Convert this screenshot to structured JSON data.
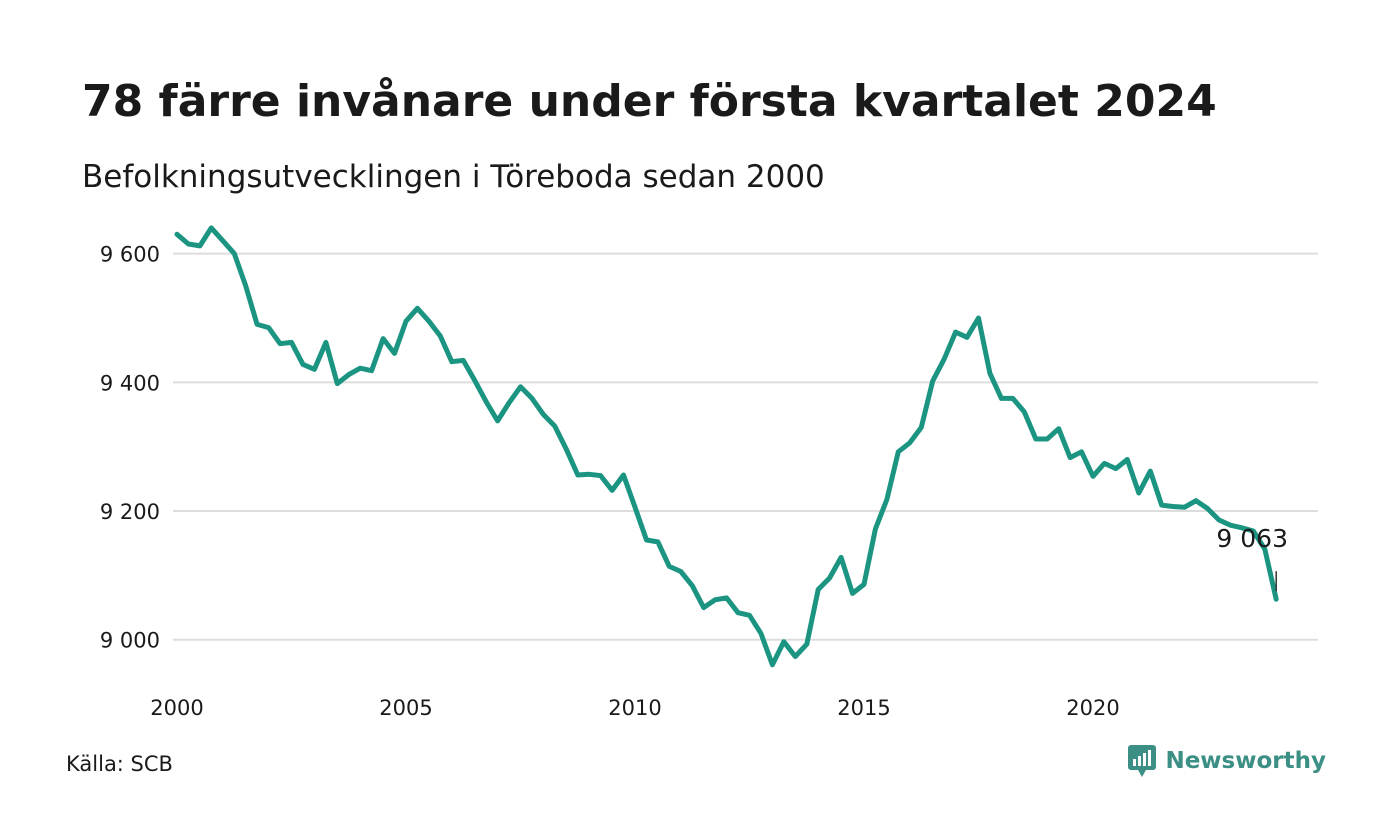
{
  "title": "78 färre invånare under första kvartalet 2024",
  "subtitle": "Befolkningsutvecklingen i Töreboda sedan 2000",
  "source": "Källa: SCB",
  "brand": {
    "name": "Newsworthy",
    "icon": "newsworthy-logo-icon",
    "color": "#3b8f84"
  },
  "chart_data": {
    "type": "line",
    "title": "78 färre invånare under första kvartalet 2024",
    "subtitle": "Befolkningsutvecklingen i Töreboda sedan 2000",
    "xlabel": "",
    "ylabel": "",
    "x_ticks": [
      "2000",
      "2005",
      "2010",
      "2015",
      "2020"
    ],
    "y_ticks": [
      {
        "value": 9000,
        "label": "9 000"
      },
      {
        "value": 9200,
        "label": "9 200"
      },
      {
        "value": 9400,
        "label": "9 400"
      },
      {
        "value": 9600,
        "label": "9 600"
      }
    ],
    "ylim": [
      8925,
      9660
    ],
    "xlim": [
      2000.0,
      2025.0
    ],
    "grid": "horizontal",
    "legend": "none",
    "line_color": "#1b9582",
    "grid_color": "#dddddd",
    "annotation": {
      "label": "9 063",
      "value": 9063,
      "x": "2024 Q1"
    },
    "series": [
      {
        "x": [
          "2000 Q1",
          "2000 Q2",
          "2000 Q3",
          "2000 Q4",
          "2001 Q1",
          "2001 Q2",
          "2001 Q3",
          "2001 Q4",
          "2002 Q1",
          "2002 Q2",
          "2002 Q3",
          "2002 Q4",
          "2003 Q1",
          "2003 Q2",
          "2003 Q3",
          "2003 Q4",
          "2004 Q1",
          "2004 Q2",
          "2004 Q3",
          "2004 Q4",
          "2005 Q1",
          "2005 Q2",
          "2005 Q3",
          "2005 Q4",
          "2006 Q1",
          "2006 Q2",
          "2006 Q3",
          "2006 Q4",
          "2007 Q1",
          "2007 Q2",
          "2007 Q3",
          "2007 Q4",
          "2008 Q1",
          "2008 Q2",
          "2008 Q3",
          "2008 Q4",
          "2009 Q1",
          "2009 Q2",
          "2009 Q3",
          "2009 Q4",
          "2010 Q1",
          "2010 Q2",
          "2010 Q3",
          "2010 Q4",
          "2011 Q1",
          "2011 Q2",
          "2011 Q3",
          "2011 Q4",
          "2012 Q1",
          "2012 Q2",
          "2012 Q3",
          "2012 Q4",
          "2013 Q1",
          "2013 Q2",
          "2013 Q3",
          "2013 Q4",
          "2014 Q1",
          "2014 Q2",
          "2014 Q3",
          "2014 Q4",
          "2015 Q1",
          "2015 Q2",
          "2015 Q3",
          "2015 Q4",
          "2016 Q1",
          "2016 Q2",
          "2016 Q3",
          "2016 Q4",
          "2017 Q1",
          "2017 Q2",
          "2017 Q3",
          "2017 Q4",
          "2018 Q1",
          "2018 Q2",
          "2018 Q3",
          "2018 Q4",
          "2019 Q1",
          "2019 Q2",
          "2019 Q3",
          "2019 Q4",
          "2020 Q1",
          "2020 Q2",
          "2020 Q3",
          "2020 Q4",
          "2021 Q1",
          "2021 Q2",
          "2021 Q3",
          "2021 Q4",
          "2022 Q1",
          "2022 Q2",
          "2022 Q3",
          "2022 Q4",
          "2023 Q1",
          "2023 Q2",
          "2023 Q3",
          "2023 Q4",
          "2024 Q1"
        ],
        "values": [
          9630,
          9615,
          9612,
          9640,
          9620,
          9600,
          9550,
          9490,
          9485,
          9460,
          9462,
          9428,
          9420,
          9462,
          9398,
          9412,
          9422,
          9418,
          9468,
          9445,
          9495,
          9515,
          9495,
          9472,
          9432,
          9434,
          9403,
          9370,
          9340,
          9368,
          9393,
          9375,
          9350,
          9332,
          9296,
          9256,
          9257,
          9255,
          9232,
          9256,
          9206,
          9155,
          9152,
          9114,
          9106,
          9084,
          9050,
          9062,
          9065,
          9042,
          9038,
          9010,
          8961,
          8997,
          8974,
          8993,
          9078,
          9096,
          9128,
          9072,
          9086,
          9172,
          9218,
          9292,
          9306,
          9330,
          9402,
          9436,
          9478,
          9470,
          9500,
          9414,
          9375,
          9375,
          9354,
          9312,
          9312,
          9328,
          9283,
          9292,
          9254,
          9274,
          9266,
          9280,
          9228,
          9262,
          9209,
          9207,
          9206,
          9216,
          9204,
          9186,
          9178,
          9174,
          9169,
          9141,
          9063
        ]
      }
    ]
  }
}
